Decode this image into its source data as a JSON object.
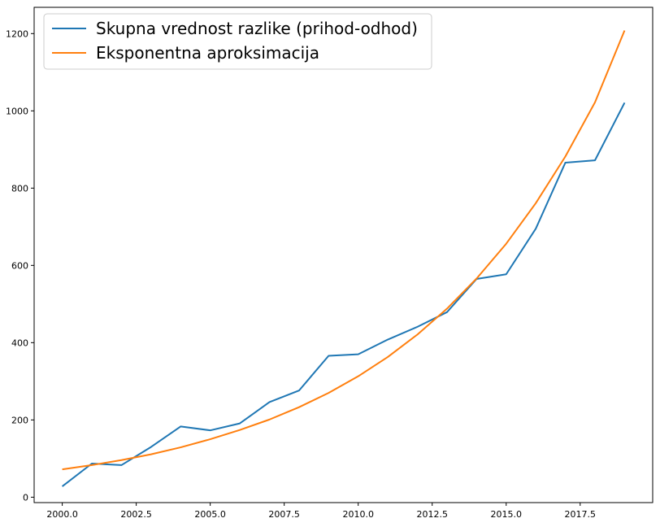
{
  "chart_data": {
    "type": "line",
    "title": "",
    "xlabel": "",
    "ylabel": "",
    "x": [
      2000,
      2001,
      2002,
      2003,
      2004,
      2005,
      2006,
      2007,
      2008,
      2009,
      2010,
      2011,
      2012,
      2013,
      2014,
      2015,
      2016,
      2017,
      2018,
      2019
    ],
    "series": [
      {
        "name": "Skupna vrednost razlike (prihod-odhod)",
        "color": "#1f77b4",
        "values": [
          28,
          87,
          83,
          130,
          183,
          173,
          191,
          246,
          276,
          366,
          370,
          408,
          441,
          479,
          565,
          577,
          695,
          866,
          872,
          1021
        ]
      },
      {
        "name": "Eksponentna aproksimacija",
        "color": "#ff7f0e",
        "values": [
          72,
          83,
          96,
          111,
          129,
          150,
          174,
          201,
          233,
          270,
          313,
          363,
          421,
          488,
          566,
          656,
          761,
          882,
          1022,
          1208
        ]
      }
    ],
    "xlim": [
      1999.05,
      2019.95
    ],
    "ylim": [
      -14,
      1268
    ],
    "xticks": [
      2000.0,
      2002.5,
      2005.0,
      2007.5,
      2010.0,
      2012.5,
      2015.0,
      2017.5
    ],
    "xtick_labels": [
      "2000.0",
      "2002.5",
      "2005.0",
      "2007.5",
      "2010.0",
      "2012.5",
      "2015.0",
      "2017.5"
    ],
    "yticks": [
      0,
      200,
      400,
      600,
      800,
      1000,
      1200
    ],
    "ytick_labels": [
      "0",
      "200",
      "400",
      "600",
      "800",
      "1000",
      "1200"
    ],
    "grid": false,
    "legend_position": "top-left"
  }
}
